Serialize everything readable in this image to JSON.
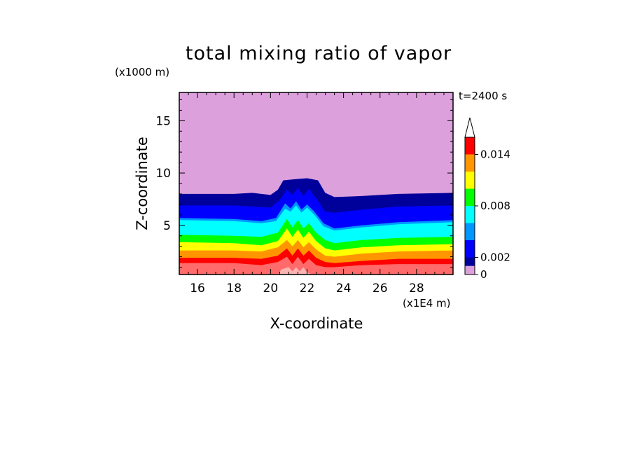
{
  "chart_data": {
    "type": "heatmap",
    "title": "total mixing ratio of vapor",
    "xlabel": "X-coordinate",
    "ylabel": "Z-coordinate",
    "x_unit": "(x1E4 m)",
    "y_unit": "(x1000 m)",
    "time_label": "t=2400 s",
    "xlim": [
      15,
      30
    ],
    "ylim": [
      0.3,
      17.7
    ],
    "x_ticks": [
      16,
      18,
      20,
      22,
      24,
      26,
      28
    ],
    "y_ticks": [
      5,
      10,
      15
    ],
    "colorbar": {
      "levels": [
        0,
        0.001,
        0.002,
        0.004,
        0.006,
        0.008,
        0.01,
        0.012,
        0.014,
        0.016
      ],
      "tick_values": [
        0,
        0.002,
        0.008,
        0.014
      ],
      "tick_labels": [
        "0",
        "0.002",
        "0.008",
        "0.014"
      ],
      "colors": [
        "#dca0dc",
        "#00009b",
        "#0000ff",
        "#0096ff",
        "#00ffff",
        "#00ff00",
        "#ffff00",
        "#ff9600",
        "#ff0000",
        "#ff6a6a",
        "#fab4b4"
      ],
      "extend": "max"
    },
    "contours": [
      {
        "level_index": 1,
        "color": "#00009b",
        "top": [
          [
            15,
            8.0
          ],
          [
            18,
            8.0
          ],
          [
            19,
            8.1
          ],
          [
            20,
            7.9
          ],
          [
            20.4,
            8.4
          ],
          [
            20.7,
            9.3
          ],
          [
            21.3,
            9.4
          ],
          [
            22.0,
            9.5
          ],
          [
            22.6,
            9.3
          ],
          [
            23.0,
            8.1
          ],
          [
            23.5,
            7.7
          ],
          [
            25,
            7.8
          ],
          [
            27,
            8.0
          ],
          [
            30,
            8.1
          ]
        ]
      },
      {
        "level_index": 2,
        "color": "#0000ff",
        "top": [
          [
            15,
            6.9
          ],
          [
            18,
            6.9
          ],
          [
            19,
            6.8
          ],
          [
            20,
            6.7
          ],
          [
            20.5,
            7.4
          ],
          [
            20.9,
            8.4
          ],
          [
            21.2,
            7.9
          ],
          [
            21.5,
            8.6
          ],
          [
            21.8,
            7.8
          ],
          [
            22.1,
            8.5
          ],
          [
            22.5,
            7.6
          ],
          [
            23.0,
            6.3
          ],
          [
            23.5,
            6.2
          ],
          [
            25,
            6.5
          ],
          [
            27,
            6.8
          ],
          [
            30,
            6.9
          ]
        ]
      },
      {
        "level_index": 3,
        "color": "#0096ff",
        "top": [
          [
            15,
            5.7
          ],
          [
            18,
            5.6
          ],
          [
            19.5,
            5.4
          ],
          [
            20.3,
            5.7
          ],
          [
            20.8,
            7.1
          ],
          [
            21.1,
            6.6
          ],
          [
            21.4,
            7.3
          ],
          [
            21.7,
            6.5
          ],
          [
            22.0,
            7.0
          ],
          [
            22.4,
            6.3
          ],
          [
            22.9,
            5.2
          ],
          [
            23.5,
            4.7
          ],
          [
            25,
            5.0
          ],
          [
            27,
            5.3
          ],
          [
            30,
            5.5
          ]
        ]
      },
      {
        "level_index": 4,
        "color": "#00ffff",
        "top": [
          [
            15,
            5.5
          ],
          [
            18,
            5.4
          ],
          [
            19.5,
            5.2
          ],
          [
            20.3,
            5.4
          ],
          [
            20.8,
            6.6
          ],
          [
            21.1,
            6.3
          ],
          [
            21.4,
            6.9
          ],
          [
            21.7,
            6.2
          ],
          [
            22.0,
            6.7
          ],
          [
            22.4,
            6.0
          ],
          [
            22.9,
            4.9
          ],
          [
            23.5,
            4.5
          ],
          [
            25,
            4.8
          ],
          [
            27,
            5.1
          ],
          [
            30,
            5.3
          ]
        ]
      },
      {
        "level_index": 5,
        "color": "#00ff00",
        "top": [
          [
            15,
            4.1
          ],
          [
            18,
            4.0
          ],
          [
            19.5,
            3.9
          ],
          [
            20.4,
            4.3
          ],
          [
            20.9,
            5.6
          ],
          [
            21.2,
            4.8
          ],
          [
            21.5,
            5.5
          ],
          [
            21.8,
            4.7
          ],
          [
            22.1,
            5.2
          ],
          [
            22.5,
            4.3
          ],
          [
            23.0,
            3.6
          ],
          [
            23.5,
            3.3
          ],
          [
            25,
            3.6
          ],
          [
            27,
            3.8
          ],
          [
            30,
            3.9
          ]
        ]
      },
      {
        "level_index": 6,
        "color": "#ffff00",
        "top": [
          [
            15,
            3.4
          ],
          [
            18,
            3.3
          ],
          [
            19.5,
            3.1
          ],
          [
            20.4,
            3.5
          ],
          [
            20.9,
            4.7
          ],
          [
            21.2,
            3.9
          ],
          [
            21.5,
            4.6
          ],
          [
            21.8,
            3.8
          ],
          [
            22.1,
            4.4
          ],
          [
            22.5,
            3.5
          ],
          [
            23.0,
            2.8
          ],
          [
            23.5,
            2.6
          ],
          [
            25,
            2.9
          ],
          [
            27,
            3.1
          ],
          [
            30,
            3.2
          ]
        ]
      },
      {
        "level_index": 7,
        "color": "#ff9600",
        "top": [
          [
            15,
            2.6
          ],
          [
            18,
            2.6
          ],
          [
            19.5,
            2.5
          ],
          [
            20.4,
            2.9
          ],
          [
            20.9,
            3.6
          ],
          [
            21.2,
            3.0
          ],
          [
            21.5,
            3.6
          ],
          [
            21.8,
            2.9
          ],
          [
            22.1,
            3.4
          ],
          [
            22.5,
            2.7
          ],
          [
            23.0,
            2.1
          ],
          [
            23.5,
            2.0
          ],
          [
            25,
            2.3
          ],
          [
            27,
            2.5
          ],
          [
            30,
            2.6
          ]
        ]
      },
      {
        "level_index": 8,
        "color": "#ff0000",
        "top": [
          [
            15,
            1.9
          ],
          [
            18,
            1.9
          ],
          [
            19.5,
            1.8
          ],
          [
            20.4,
            2.1
          ],
          [
            20.9,
            2.8
          ],
          [
            21.2,
            2.1
          ],
          [
            21.5,
            2.8
          ],
          [
            21.8,
            2.1
          ],
          [
            22.1,
            2.6
          ],
          [
            22.5,
            1.9
          ],
          [
            23.0,
            1.5
          ],
          [
            23.5,
            1.4
          ],
          [
            25,
            1.6
          ],
          [
            27,
            1.8
          ],
          [
            30,
            1.8
          ]
        ]
      },
      {
        "level_index": 9,
        "color": "#ff6a6a",
        "top": [
          [
            15,
            1.4
          ],
          [
            18,
            1.4
          ],
          [
            19.5,
            1.2
          ],
          [
            20.4,
            1.5
          ],
          [
            20.9,
            2.0
          ],
          [
            21.2,
            1.3
          ],
          [
            21.5,
            2.0
          ],
          [
            21.8,
            1.3
          ],
          [
            22.1,
            1.8
          ],
          [
            22.5,
            1.2
          ],
          [
            23.0,
            1.0
          ],
          [
            23.5,
            1.0
          ],
          [
            25,
            1.2
          ],
          [
            27,
            1.3
          ],
          [
            30,
            1.3
          ]
        ]
      },
      {
        "level_index": 10,
        "color": "#fab4b4",
        "top": [
          [
            20.4,
            0.3
          ],
          [
            20.6,
            0.8
          ],
          [
            21.0,
            1.0
          ],
          [
            21.2,
            0.6
          ],
          [
            21.4,
            1.0
          ],
          [
            21.6,
            0.6
          ],
          [
            21.8,
            1.0
          ],
          [
            22.0,
            0.5
          ],
          [
            22.3,
            0.3
          ]
        ]
      }
    ]
  }
}
